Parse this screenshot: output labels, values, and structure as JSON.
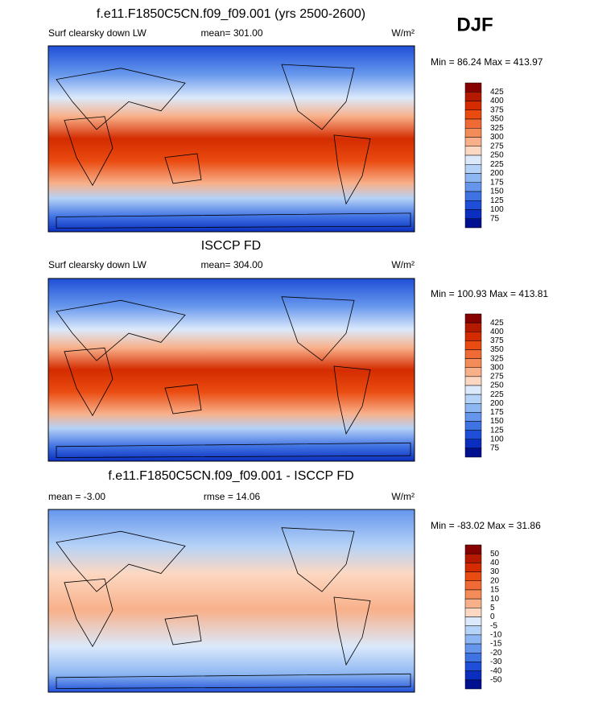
{
  "season": "DJF",
  "colorbar_colors": [
    "#850200",
    "#b51a00",
    "#d42c00",
    "#ea4b10",
    "#f06a35",
    "#f48c5a",
    "#f8b08a",
    "#fcd8c2",
    "#dbe9fb",
    "#b5d2f7",
    "#8db7f2",
    "#6596ec",
    "#3f72e3",
    "#1f4fd8",
    "#0a2fc0",
    "#00108f"
  ],
  "panels": [
    {
      "title": "f.e11.F1850C5CN.f09_f09.001 (yrs 2500-2600)",
      "left_label": "Surf clearsky down LW",
      "center_label": "mean= 301.00",
      "units": "W/m²",
      "min_max": "Min =  86.24 Max = 413.97",
      "colorbar_labels": [
        "425",
        "400",
        "375",
        "350",
        "325",
        "300",
        "275",
        "250",
        "225",
        "200",
        "175",
        "150",
        "125",
        "100",
        "75"
      ]
    },
    {
      "title": "ISCCP FD",
      "left_label": "Surf clearsky down LW",
      "center_label": "mean= 304.00",
      "units": "W/m²",
      "min_max": "Min = 100.93 Max = 413.81",
      "colorbar_labels": [
        "425",
        "400",
        "375",
        "350",
        "325",
        "300",
        "275",
        "250",
        "225",
        "200",
        "175",
        "150",
        "125",
        "100",
        "75"
      ]
    },
    {
      "title": "f.e11.F1850C5CN.f09_f09.001 - ISCCP FD",
      "left_label": "mean =  -3.00",
      "center_label": "rmse =  14.06",
      "units": "W/m²",
      "min_max": "Min = -83.02 Max =  31.86",
      "colorbar_labels": [
        "50",
        "40",
        "30",
        "20",
        "15",
        "10",
        "5",
        "0",
        "-5",
        "-10",
        "-15",
        "-20",
        "-30",
        "-40",
        "-50"
      ]
    }
  ]
}
